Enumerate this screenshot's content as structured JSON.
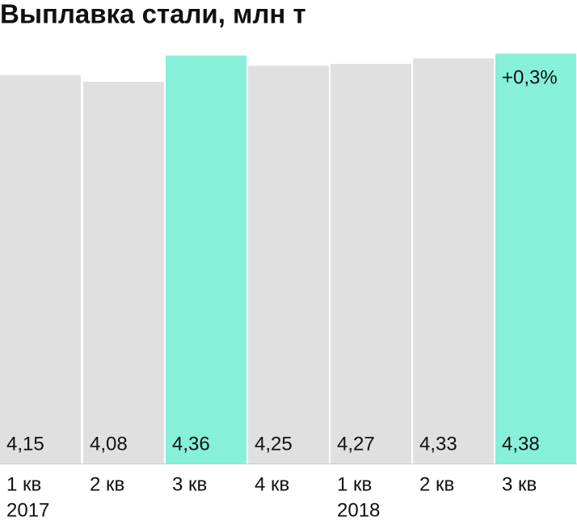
{
  "chart_data": {
    "type": "bar",
    "title": "Выплавка стали, млн т",
    "categories": [
      "1 кв",
      "2 кв",
      "3 кв",
      "4 кв",
      "1 кв",
      "2 кв",
      "3 кв"
    ],
    "years": [
      "2017",
      null,
      null,
      null,
      "2018",
      null,
      null
    ],
    "values": [
      4.15,
      4.08,
      4.36,
      4.25,
      4.27,
      4.33,
      4.38
    ],
    "value_labels": [
      "4,15",
      "4,08",
      "4,36",
      "4,25",
      "4,27",
      "4,33",
      "4,38"
    ],
    "colors": [
      "#e0e0e0",
      "#e0e0e0",
      "#86f0d8",
      "#e0e0e0",
      "#e0e0e0",
      "#e0e0e0",
      "#86f0d8"
    ],
    "annotation": "+0,3%",
    "ylim": [
      0,
      4.4
    ]
  }
}
